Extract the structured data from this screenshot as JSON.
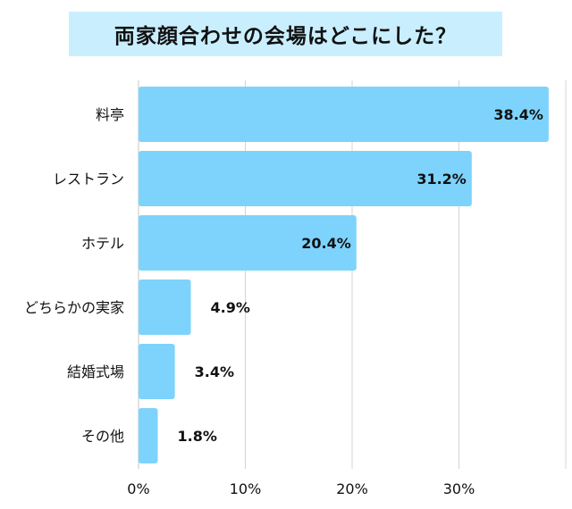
{
  "colors": {
    "bar": "#7dd3fc",
    "grid": "#d4d4d4",
    "title_bg": "#c9efff",
    "text": "#111111"
  },
  "chart_data": {
    "type": "bar",
    "orientation": "horizontal",
    "title": "両家顔合わせの会場はどこにした？",
    "categories": [
      "料亭",
      "レストラン",
      "ホテル",
      "どちらかの実家",
      "結婚式場",
      "その他"
    ],
    "values": [
      38.4,
      31.2,
      20.4,
      4.9,
      3.4,
      1.8
    ],
    "value_labels": [
      "38.4%",
      "31.2%",
      "20.4%",
      "4.9%",
      "3.4%",
      "1.8%"
    ],
    "x_ticks": [
      "0%",
      "10%",
      "20%",
      "30%"
    ],
    "x_tick_values": [
      0,
      10,
      20,
      30
    ],
    "xlim": [
      0,
      40
    ],
    "grid": true
  }
}
